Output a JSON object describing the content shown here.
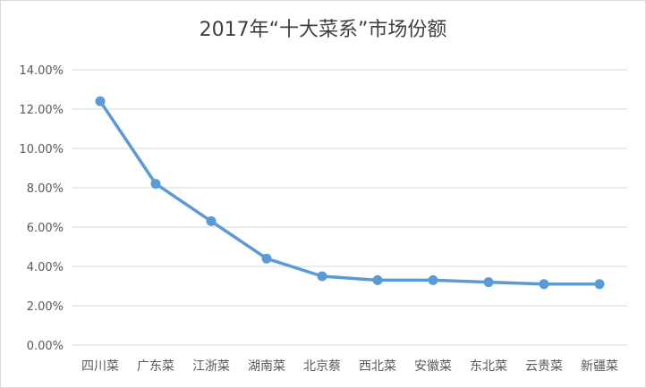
{
  "chart_data": {
    "type": "line",
    "title": "2017年“十大菜系”市场份额",
    "xlabel": "",
    "ylabel": "",
    "categories": [
      "四川菜",
      "广东菜",
      "江浙菜",
      "湖南菜",
      "北京蔡",
      "西北菜",
      "安徽菜",
      "东北菜",
      "云贵菜",
      "新疆菜"
    ],
    "series": [
      {
        "values": [
          0.124,
          0.082,
          0.063,
          0.044,
          0.035,
          0.033,
          0.033,
          0.032,
          0.031,
          0.031
        ],
        "color": "#5b9bd5"
      }
    ],
    "ylim": [
      0,
      0.14
    ],
    "yticks": [
      0,
      0.02,
      0.04,
      0.06,
      0.08,
      0.1,
      0.12,
      0.14
    ],
    "ytick_labels": [
      "0.00%",
      "2.00%",
      "4.00%",
      "6.00%",
      "8.00%",
      "10.00%",
      "12.00%",
      "14.00%"
    ],
    "grid": true,
    "legend": "none",
    "markers": true
  }
}
